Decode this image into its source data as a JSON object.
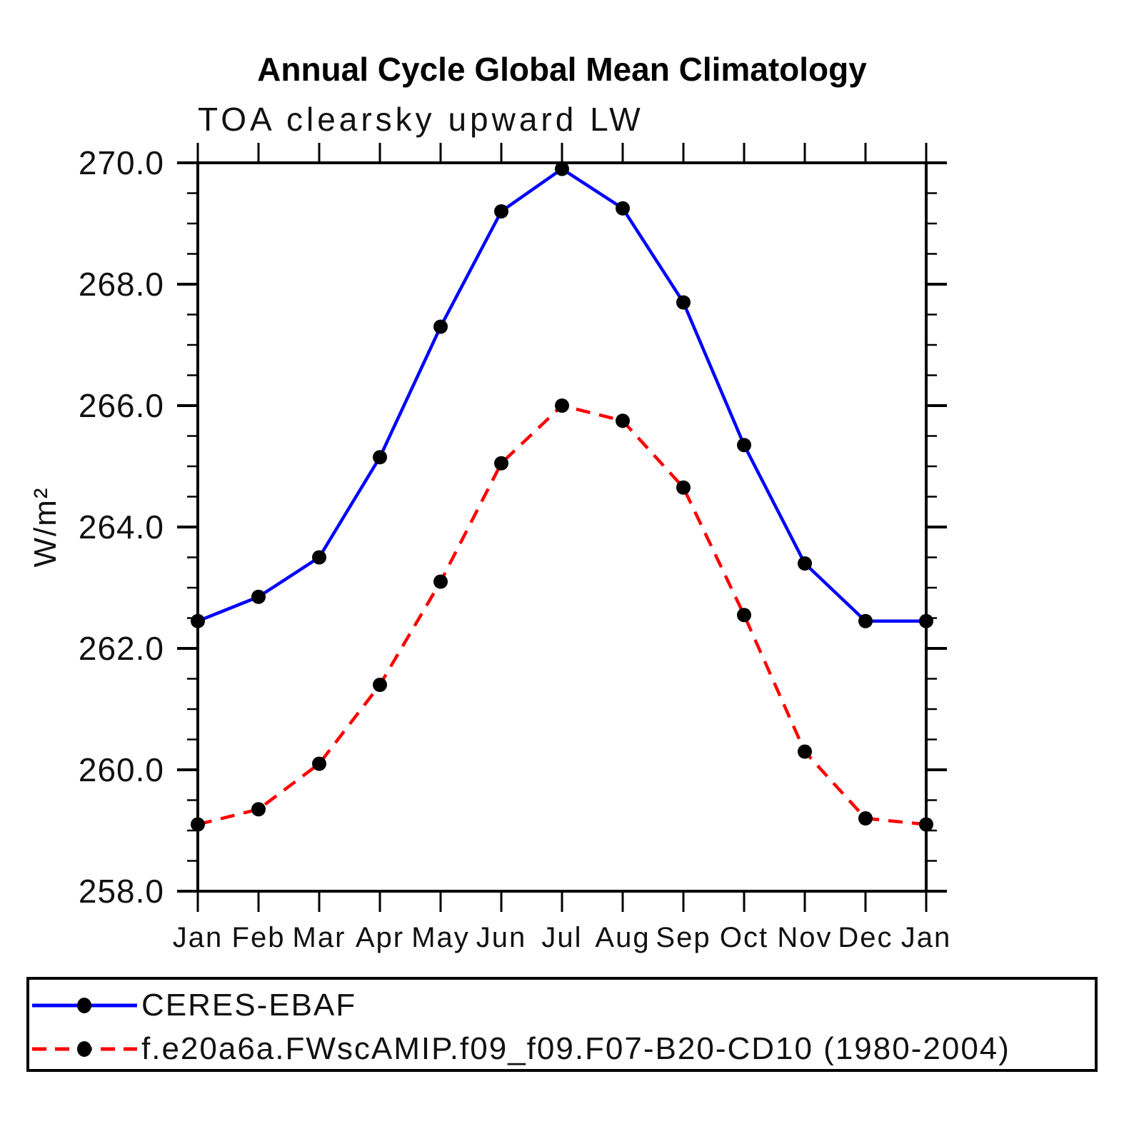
{
  "chart_data": {
    "type": "line",
    "title": "Annual Cycle Global Mean Climatology",
    "subtitle": "TOA clearsky upward LW",
    "xlabel": "",
    "ylabel": "W/m²",
    "x_categories": [
      "Jan",
      "Feb",
      "Mar",
      "Apr",
      "May",
      "Jun",
      "Jul",
      "Aug",
      "Sep",
      "Oct",
      "Nov",
      "Dec",
      "Jan"
    ],
    "ylim": [
      258.0,
      270.0
    ],
    "ytick_major_interval": 2.0,
    "ytick_minor_interval": 0.5,
    "ytick_labels": [
      "258.0",
      "260.0",
      "262.0",
      "264.0",
      "266.0",
      "268.0",
      "270.0"
    ],
    "grid": false,
    "legend_position": "bottom",
    "frame_color": "#000000",
    "marker_color": "#000000",
    "series": [
      {
        "name": "CERES-EBAF",
        "color": "#0000ff",
        "style": "solid",
        "marker": "filled-circle",
        "values": [
          262.45,
          262.85,
          263.5,
          265.15,
          267.3,
          269.2,
          269.9,
          269.25,
          267.7,
          265.35,
          263.4,
          262.45,
          262.45
        ]
      },
      {
        "name": "f.e20a6a.FWscAMIP.f09_f09.F07-B20-CD10 (1980-2004)",
        "color": "#ff0000",
        "style": "dashed",
        "marker": "filled-circle",
        "values": [
          259.1,
          259.35,
          260.1,
          261.4,
          263.1,
          265.05,
          266.0,
          265.75,
          264.65,
          262.55,
          260.3,
          259.2,
          259.1
        ]
      }
    ]
  }
}
